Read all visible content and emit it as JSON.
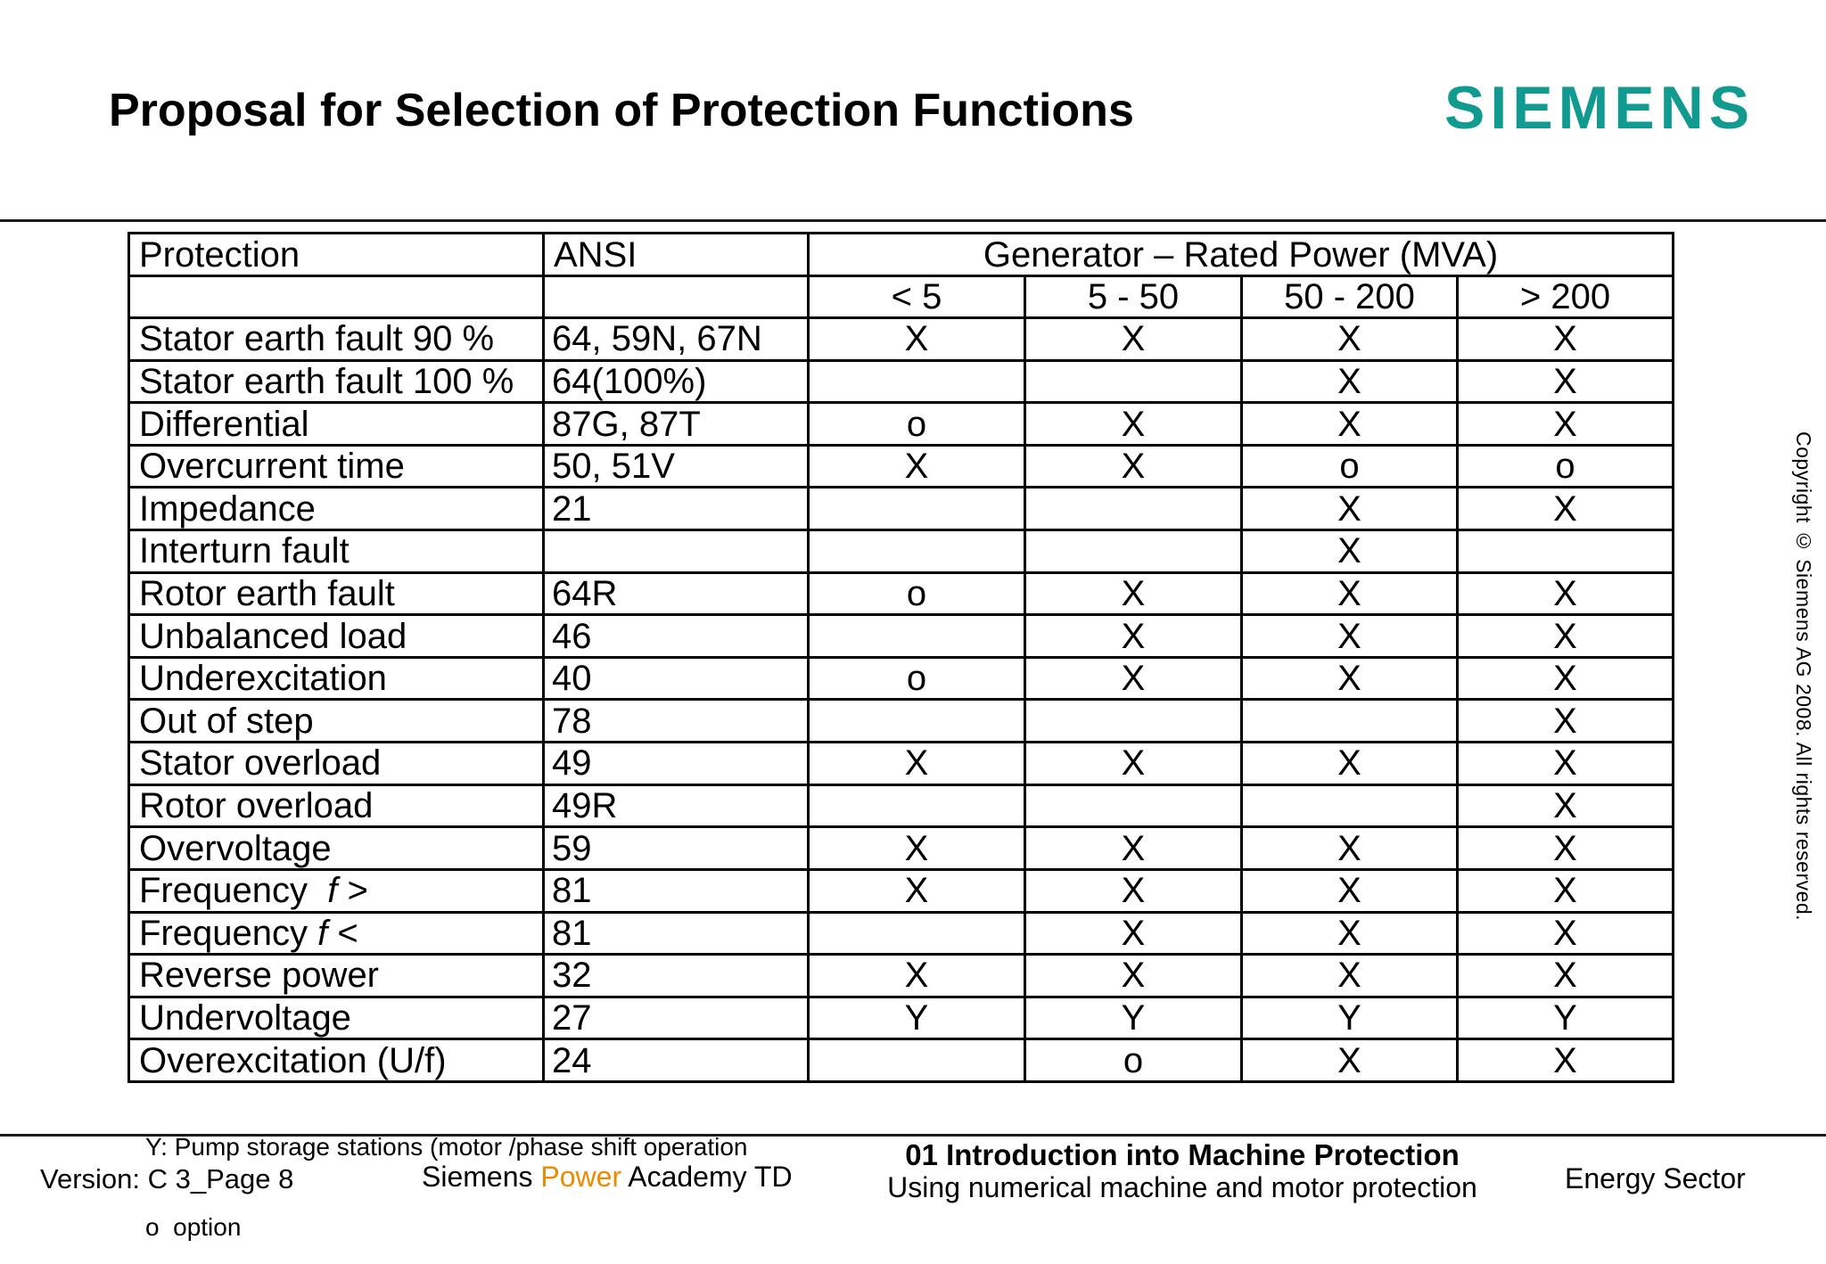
{
  "colors": {
    "siemens_teal": "#119B90",
    "power_orange": "#EC8A00",
    "line_dark": "#1B1B1B"
  },
  "header": {
    "title": "Proposal for Selection of Protection Functions",
    "logo": "SIEMENS"
  },
  "table": {
    "header": {
      "protection": "Protection",
      "ansi": "ANSI",
      "generator": "Generator – Rated Power (MVA)",
      "power_ranges": [
        "< 5",
        "5 - 50",
        "50 - 200",
        "> 200"
      ]
    },
    "rows": [
      {
        "name": "Stator earth fault 90 %",
        "ansi": "64, 59N, 67N",
        "marks": [
          "X",
          "X",
          "X",
          "X"
        ]
      },
      {
        "name": "Stator earth fault 100 %",
        "ansi": "64(100%)",
        "marks": [
          "",
          "",
          "X",
          "X"
        ]
      },
      {
        "name": "Differential",
        "ansi": "87G, 87T",
        "marks": [
          "o",
          "X",
          "X",
          "X"
        ]
      },
      {
        "name": "Overcurrent time",
        "ansi": "50, 51V",
        "marks": [
          "X",
          "X",
          "o",
          "o"
        ]
      },
      {
        "name": "Impedance",
        "ansi": "21",
        "marks": [
          "",
          "",
          "X",
          "X"
        ]
      },
      {
        "name": "Interturn fault",
        "ansi": "",
        "marks": [
          "",
          "",
          "X",
          ""
        ]
      },
      {
        "name": "Rotor earth fault",
        "ansi": "64R",
        "marks": [
          "o",
          "X",
          "X",
          "X"
        ]
      },
      {
        "name": "Unbalanced load",
        "ansi": "46",
        "marks": [
          "",
          "X",
          "X",
          "X"
        ]
      },
      {
        "name": "Underexcitation",
        "ansi": "40",
        "marks": [
          "o",
          "X",
          "X",
          "X"
        ]
      },
      {
        "name": "Out of step",
        "ansi": "78",
        "marks": [
          "",
          "",
          "",
          "X"
        ]
      },
      {
        "name": "Stator overload",
        "ansi": "49",
        "marks": [
          "X",
          "X",
          "X",
          "X"
        ]
      },
      {
        "name": "Rotor overload",
        "ansi": "49R",
        "marks": [
          "",
          "",
          "",
          "X"
        ]
      },
      {
        "name": "Overvoltage",
        "ansi": "59",
        "marks": [
          "X",
          "X",
          "X",
          "X"
        ]
      },
      {
        "name": "Frequency  ",
        "name_italic": "f",
        "name_suffix": " >",
        "ansi": "81",
        "marks": [
          "X",
          "X",
          "X",
          "X"
        ]
      },
      {
        "name": "Frequency ",
        "name_italic": "f",
        "name_suffix": " <",
        "ansi": "81",
        "marks": [
          "",
          "X",
          "X",
          "X"
        ]
      },
      {
        "name": "Reverse power",
        "ansi": "32",
        "marks": [
          "X",
          "X",
          "X",
          "X"
        ]
      },
      {
        "name": "Undervoltage",
        "ansi": "27",
        "marks": [
          "Y",
          "Y",
          "Y",
          "Y"
        ]
      },
      {
        "name": "Overexcitation (U/f)",
        "ansi": "24",
        "marks": [
          "",
          "o",
          "X",
          "X"
        ]
      }
    ],
    "legend_line1": "Y: Pump storage stations (motor /phase shift operation",
    "legend_line2": "o  option"
  },
  "footer": {
    "version": "Version: C 3_Page 8",
    "academy_pre": "Siemens ",
    "academy_highlight": "Power",
    "academy_post": " Academy TD",
    "course_title": "01 Introduction into Machine Protection",
    "course_subtitle": "Using numerical machine and motor protection",
    "sector": "Energy Sector"
  },
  "copyright_vertical": "Copyright © Siemens AG 2008. All rights reserved."
}
